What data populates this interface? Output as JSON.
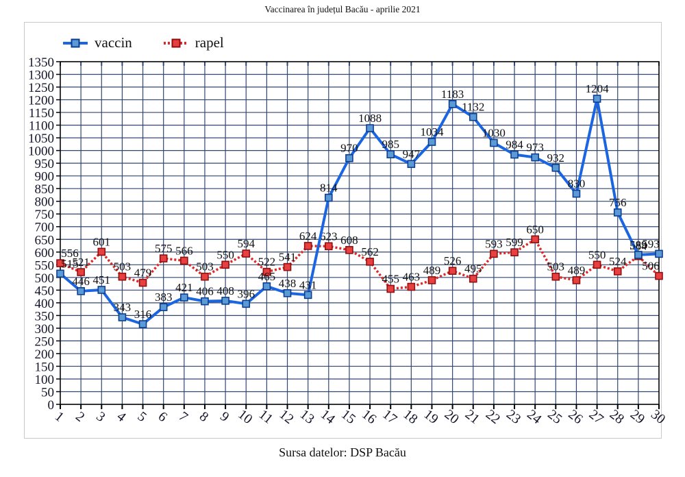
{
  "title": "Vaccinarea în județul Bacău - aprilie 2021",
  "footer": "Sursa datelor: DSP Bacău",
  "chart_data": {
    "type": "line",
    "title": "Vaccinarea în județul Bacău - aprilie 2021",
    "xlabel": "",
    "ylabel": "",
    "x": [
      1,
      2,
      3,
      4,
      5,
      6,
      7,
      8,
      9,
      10,
      11,
      12,
      13,
      14,
      15,
      16,
      17,
      18,
      19,
      20,
      21,
      22,
      23,
      24,
      25,
      26,
      27,
      28,
      29,
      30
    ],
    "series": [
      {
        "name": "vaccin",
        "color": "#1b66e0",
        "marker_fill": "#5b9bd5",
        "marker_stroke": "#0d3d91",
        "width": 4,
        "dash": "",
        "values": [
          515,
          446,
          451,
          343,
          316,
          383,
          421,
          406,
          408,
          396,
          465,
          438,
          431,
          814,
          970,
          1088,
          985,
          947,
          1034,
          1183,
          1132,
          1030,
          984,
          973,
          932,
          830,
          1204,
          756,
          589,
          593
        ]
      },
      {
        "name": "rapel",
        "color": "#e02828",
        "marker_fill": "#e84040",
        "marker_stroke": "#8f0f0f",
        "width": 3.5,
        "dash": "3 3",
        "values": [
          556,
          521,
          601,
          503,
          479,
          575,
          566,
          503,
          550,
          594,
          522,
          541,
          624,
          623,
          608,
          562,
          455,
          463,
          489,
          526,
          495,
          593,
          599,
          650,
          503,
          489,
          550,
          524,
          584,
          506
        ]
      }
    ],
    "ylim": [
      0,
      1350
    ],
    "ytick": 50,
    "grid": true,
    "legend_position": "top-left",
    "colors": {
      "grid": "#304672",
      "axis": "#000000"
    },
    "source_note": "Sursa datelor: DSP Bacău"
  }
}
